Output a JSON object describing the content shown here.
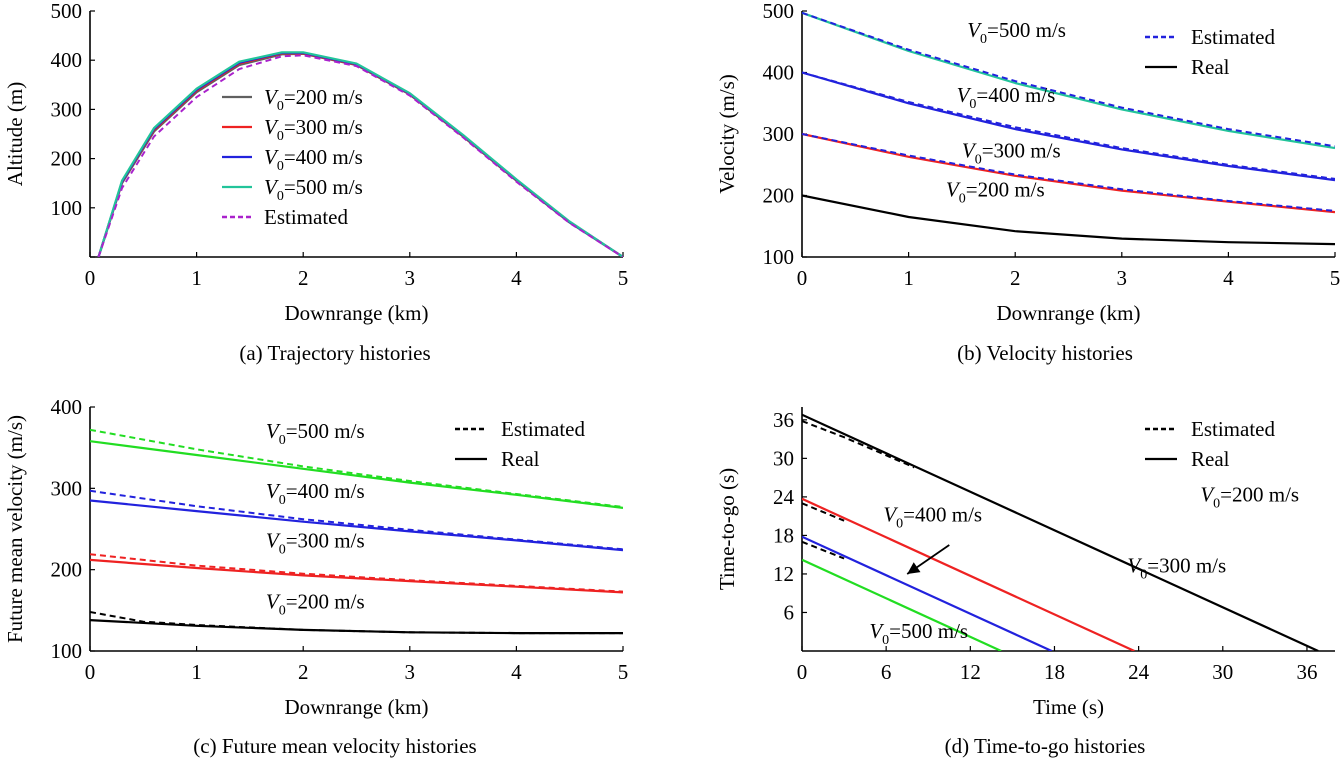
{
  "panels": [
    {
      "caption": "(a) Trajectory histories",
      "chart_data": {
        "type": "line",
        "xlabel": "Downrange (km)",
        "ylabel": "Altitude (m)",
        "xlim": [
          0,
          5
        ],
        "ylim": [
          0,
          500
        ],
        "xticks": [
          0,
          1,
          2,
          3,
          4,
          5
        ],
        "yticks": [
          0,
          100,
          200,
          300,
          400,
          500
        ],
        "ytick_labels": [
          "",
          "100",
          "200",
          "300",
          "400",
          "500"
        ],
        "series": [
          {
            "name": "V0=200 m/s",
            "color": "#606060",
            "dash": false,
            "x": [
              0.08,
              0.3,
              0.6,
              1.0,
              1.4,
              1.8,
              2.0,
              2.5,
              3.0,
              3.5,
              4.0,
              4.5,
              5.0
            ],
            "y": [
              0,
              150,
              255,
              335,
              390,
              412,
              413,
              390,
              330,
              245,
              155,
              70,
              0
            ]
          },
          {
            "name": "V0=300 m/s",
            "color": "#ee2222",
            "dash": false,
            "x": [
              0.08,
              0.3,
              0.6,
              1.0,
              1.4,
              1.8,
              2.0,
              2.5,
              3.0,
              3.5,
              4.0,
              4.5,
              5.0
            ],
            "y": [
              0,
              152,
              258,
              338,
              393,
              414,
              414,
              391,
              331,
              246,
              156,
              71,
              0
            ]
          },
          {
            "name": "V0=400 m/s",
            "color": "#2222dd",
            "dash": false,
            "x": [
              0.08,
              0.3,
              0.6,
              1.0,
              1.4,
              1.8,
              2.0,
              2.5,
              3.0,
              3.5,
              4.0,
              4.5,
              5.0
            ],
            "y": [
              0,
              153,
              260,
              340,
              395,
              415,
              415,
              392,
              332,
              247,
              157,
              71,
              0
            ]
          },
          {
            "name": "V0=500 m/s",
            "color": "#22c49a",
            "dash": false,
            "x": [
              0.08,
              0.3,
              0.6,
              1.0,
              1.4,
              1.8,
              2.0,
              2.5,
              3.0,
              3.5,
              4.0,
              4.5,
              5.0
            ],
            "y": [
              0,
              155,
              262,
              342,
              397,
              416,
              416,
              393,
              333,
              248,
              158,
              72,
              0
            ]
          },
          {
            "name": "Estimated",
            "color": "#aa22cc",
            "dash": true,
            "x": [
              0.08,
              0.3,
              0.6,
              1.0,
              1.4,
              1.8,
              2.0,
              2.5,
              3.0,
              3.5,
              4.0,
              4.5,
              5.0
            ],
            "y": [
              0,
              140,
              245,
              325,
              382,
              408,
              410,
              388,
              328,
              243,
              153,
              69,
              0
            ]
          }
        ],
        "legend": [
          {
            "label": "V0=200 m/s",
            "color": "#606060",
            "dash": false
          },
          {
            "label": "V0=300 m/s",
            "color": "#ee2222",
            "dash": false
          },
          {
            "label": "V0=400 m/s",
            "color": "#2222dd",
            "dash": false
          },
          {
            "label": "V0=500 m/s",
            "color": "#22c49a",
            "dash": false
          },
          {
            "label": "Estimated",
            "color": "#aa22cc",
            "dash": true
          }
        ],
        "annotations": []
      }
    },
    {
      "caption": "(b) Velocity histories",
      "chart_data": {
        "type": "line",
        "xlabel": "Downrange (km)",
        "ylabel": "Velocity (m/s)",
        "xlim": [
          0,
          5
        ],
        "ylim": [
          100,
          500
        ],
        "xticks": [
          0,
          1,
          2,
          3,
          4,
          5
        ],
        "yticks": [
          100,
          200,
          300,
          400,
          500
        ],
        "ytick_labels": [
          "100",
          "200",
          "300",
          "400",
          "500"
        ],
        "series": [
          {
            "name": "V0=200 m/s real",
            "color": "#000000",
            "dash": false,
            "x": [
              0,
              1,
              2,
              3,
              4,
              5
            ],
            "y": [
              200,
              165,
              142,
              130,
              124,
              121
            ]
          },
          {
            "name": "V0=300 m/s real",
            "color": "#ee2222",
            "dash": false,
            "x": [
              0,
              1,
              2,
              3,
              4,
              5
            ],
            "y": [
              300,
              263,
              232,
              208,
              190,
              173
            ]
          },
          {
            "name": "V0=300 m/s estimated",
            "color": "#2222dd",
            "dash": true,
            "x": [
              0,
              1,
              2,
              3,
              4,
              5
            ],
            "y": [
              300,
              265,
              234,
              210,
              191,
              175
            ]
          },
          {
            "name": "V0=400 m/s real",
            "color": "#2222dd",
            "dash": false,
            "x": [
              0,
              1,
              2,
              3,
              4,
              5
            ],
            "y": [
              400,
              350,
              308,
              275,
              248,
              225
            ]
          },
          {
            "name": "V0=400 m/s estimated",
            "color": "#2222dd",
            "dash": true,
            "x": [
              0,
              1,
              2,
              3,
              4,
              5
            ],
            "y": [
              400,
              352,
              311,
              277,
              250,
              227
            ]
          },
          {
            "name": "V0=500 m/s real",
            "color": "#22c49a",
            "dash": false,
            "x": [
              0,
              1,
              2,
              3,
              4,
              5
            ],
            "y": [
              497,
              435,
              383,
              340,
              305,
              277
            ]
          },
          {
            "name": "V0=500 m/s estimated",
            "color": "#2222dd",
            "dash": true,
            "x": [
              0,
              1,
              2,
              3,
              4,
              5
            ],
            "y": [
              497,
              437,
              386,
              343,
              308,
              280
            ]
          }
        ],
        "legend": [
          {
            "label": "Estimated",
            "color": "#2222dd",
            "dash": true
          },
          {
            "label": "Real",
            "color": "#000000",
            "dash": false
          }
        ],
        "annotations": [
          {
            "v": "V",
            "sub": "0",
            "text": "=500 m/s",
            "x": 1.55,
            "y": 458
          },
          {
            "v": "V",
            "sub": "0",
            "text": "=400 m/s",
            "x": 1.45,
            "y": 352
          },
          {
            "v": "V",
            "sub": "0",
            "text": "=300 m/s",
            "x": 1.5,
            "y": 262
          },
          {
            "v": "V",
            "sub": "0",
            "text": "=200 m/s",
            "x": 1.35,
            "y": 198
          }
        ]
      }
    },
    {
      "caption": "(c) Future mean velocity histories",
      "chart_data": {
        "type": "line",
        "xlabel": "Downrange (km)",
        "ylabel": "Future mean velocity (m/s)",
        "xlim": [
          0,
          5
        ],
        "ylim": [
          100,
          400
        ],
        "xticks": [
          0,
          1,
          2,
          3,
          4,
          5
        ],
        "yticks": [
          100,
          200,
          300,
          400
        ],
        "ytick_labels": [
          "100",
          "200",
          "300",
          "400"
        ],
        "series": [
          {
            "name": "V0=200 m/s real",
            "color": "#000000",
            "dash": false,
            "x": [
              0,
              1,
              2,
              3,
              4,
              5
            ],
            "y": [
              138,
              131,
              126,
              123,
              122,
              122
            ]
          },
          {
            "name": "V0=200 m/s estimated",
            "color": "#000000",
            "dash": true,
            "x": [
              0,
              0.5,
              1,
              2,
              3,
              4,
              5
            ],
            "y": [
              148,
              136,
              132,
              126,
              123,
              122,
              122
            ]
          },
          {
            "name": "V0=300 m/s real",
            "color": "#ee2222",
            "dash": false,
            "x": [
              0,
              1,
              2,
              3,
              4,
              5
            ],
            "y": [
              212,
              202,
              193,
              186,
              179,
              172
            ]
          },
          {
            "name": "V0=300 m/s estimated",
            "color": "#ee2222",
            "dash": true,
            "x": [
              0,
              1,
              2,
              3,
              4,
              5
            ],
            "y": [
              219,
              205,
              195,
              187,
              180,
              173
            ]
          },
          {
            "name": "V0=400 m/s real",
            "color": "#2222dd",
            "dash": false,
            "x": [
              0,
              1,
              2,
              3,
              4,
              5
            ],
            "y": [
              285,
              272,
              259,
              247,
              236,
              224
            ]
          },
          {
            "name": "V0=400 m/s estimated",
            "color": "#2222dd",
            "dash": true,
            "x": [
              0,
              1,
              2,
              3,
              4,
              5
            ],
            "y": [
              297,
              278,
              262,
              249,
              237,
              225
            ]
          },
          {
            "name": "V0=500 m/s real",
            "color": "#22dd22",
            "dash": false,
            "x": [
              0,
              1,
              2,
              3,
              4,
              5
            ],
            "y": [
              358,
              341,
              324,
              307,
              292,
              276
            ]
          },
          {
            "name": "V0=500 m/s estimated",
            "color": "#22dd22",
            "dash": true,
            "x": [
              0,
              1,
              2,
              3,
              4,
              5
            ],
            "y": [
              372,
              348,
              327,
              309,
              293,
              277
            ]
          }
        ],
        "legend": [
          {
            "label": "Estimated",
            "color": "#000000",
            "dash": true
          },
          {
            "label": "Real",
            "color": "#000000",
            "dash": false
          }
        ],
        "annotations": [
          {
            "v": "V",
            "sub": "0",
            "text": "=500 m/s",
            "x": 1.65,
            "y": 362
          },
          {
            "v": "V",
            "sub": "0",
            "text": "=400 m/s",
            "x": 1.65,
            "y": 288
          },
          {
            "v": "V",
            "sub": "0",
            "text": "=300 m/s",
            "x": 1.65,
            "y": 227
          },
          {
            "v": "V",
            "sub": "0",
            "text": "=200 m/s",
            "x": 1.65,
            "y": 152
          }
        ]
      }
    },
    {
      "caption": "(d) Time-to-go histories",
      "chart_data": {
        "type": "line",
        "xlabel": "Time (s)",
        "ylabel": "Time-to-go (s)",
        "xlim": [
          0,
          38
        ],
        "ylim": [
          0,
          38
        ],
        "xticks": [
          0,
          6,
          12,
          18,
          24,
          30,
          36
        ],
        "yticks": [
          6,
          12,
          18,
          24,
          30,
          36
        ],
        "ytick_labels": [
          "6",
          "12",
          "18",
          "24",
          "30",
          "36"
        ],
        "series": [
          {
            "name": "V0=200 m/s real",
            "color": "#000000",
            "dash": false,
            "x": [
              0,
              36.8
            ],
            "y": [
              36.8,
              0
            ]
          },
          {
            "name": "V0=200 m/s estimated",
            "color": "#000000",
            "dash": true,
            "x": [
              0,
              3,
              8
            ],
            "y": [
              35.8,
              33.3,
              28.6
            ]
          },
          {
            "name": "V0=300 m/s real",
            "color": "#ee2222",
            "dash": false,
            "x": [
              0,
              23.7
            ],
            "y": [
              23.7,
              0
            ]
          },
          {
            "name": "V0=300 m/s estimated",
            "color": "#000000",
            "dash": true,
            "x": [
              0,
              3
            ],
            "y": [
              23.0,
              20.3
            ]
          },
          {
            "name": "V0=400 m/s real",
            "color": "#2222dd",
            "dash": false,
            "x": [
              0,
              17.8
            ],
            "y": [
              17.8,
              0
            ]
          },
          {
            "name": "V0=400 m/s estimated",
            "color": "#000000",
            "dash": true,
            "x": [
              0,
              3
            ],
            "y": [
              17.0,
              14.4
            ]
          },
          {
            "name": "V0=500 m/s real",
            "color": "#22dd22",
            "dash": false,
            "x": [
              0,
              14.2
            ],
            "y": [
              14.2,
              0
            ]
          }
        ],
        "legend": [
          {
            "label": "Estimated",
            "color": "#000000",
            "dash": true
          },
          {
            "label": "Real",
            "color": "#000000",
            "dash": false
          }
        ],
        "annotations": [
          {
            "v": "V",
            "sub": "0",
            "text": "=400 m/s",
            "x": 5.8,
            "y": 20.2,
            "arrow": {
              "from": [
                10.5,
                16.5
              ],
              "to": [
                7.5,
                12.0
              ]
            }
          },
          {
            "v": "V",
            "sub": "0",
            "text": "=200 m/s",
            "x": 28.4,
            "y": 23.3
          },
          {
            "v": "V",
            "sub": "0",
            "text": "=300 m/s",
            "x": 23.2,
            "y": 12.2
          },
          {
            "v": "V",
            "sub": "0",
            "text": "=500 m/s",
            "x": 4.8,
            "y": 2.0
          }
        ]
      }
    }
  ]
}
